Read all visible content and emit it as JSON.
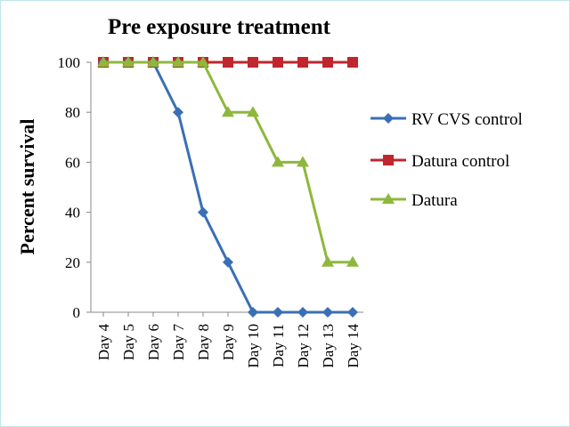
{
  "chart_data": {
    "type": "line",
    "title": "Pre exposure treatment",
    "xlabel": "",
    "ylabel": "Percent survival",
    "categories": [
      "Day 4",
      "Day 5",
      "Day 6",
      "Day 7",
      "Day 8",
      "Day 9",
      "Day 10",
      "Day 11",
      "Day 12",
      "Day 13",
      "Day 14"
    ],
    "ylim": [
      0,
      100
    ],
    "yticks": [
      0,
      20,
      40,
      60,
      80,
      100
    ],
    "grid": false,
    "legend": "right",
    "series": [
      {
        "name": "RV CVS control",
        "color": "#3a6fb5",
        "marker": "diamond",
        "values": [
          100,
          100,
          100,
          80,
          40,
          20,
          0,
          0,
          0,
          0,
          0
        ]
      },
      {
        "name": "Datura control",
        "color": "#c0262d",
        "marker": "square",
        "values": [
          100,
          100,
          100,
          100,
          100,
          100,
          100,
          100,
          100,
          100,
          100
        ]
      },
      {
        "name": "Datura",
        "color": "#8db83c",
        "marker": "triangle",
        "values": [
          100,
          100,
          100,
          100,
          100,
          80,
          80,
          60,
          60,
          20,
          20
        ]
      }
    ]
  }
}
